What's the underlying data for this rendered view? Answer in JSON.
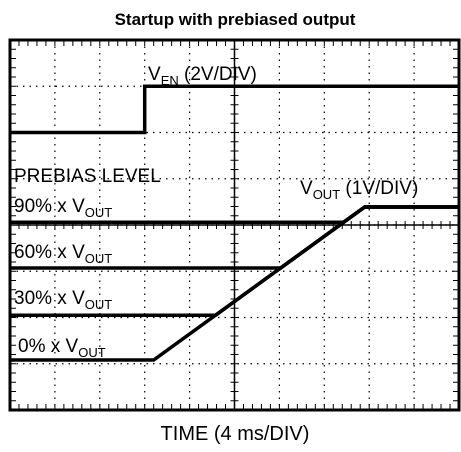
{
  "chart_data": {
    "type": "line",
    "title": "Startup with prebiased output",
    "xlabel": "TIME (4 ms/DIV)",
    "annotations": {
      "en": {
        "main": "V",
        "sub": "EN",
        "rest": " (2V/DIV)"
      },
      "vout": {
        "main": "V",
        "sub": "OUT",
        "rest": " (1V/DIV)"
      },
      "prebias": "PREBIAS LEVEL",
      "p90": {
        "main": "90% x V",
        "sub": "OUT"
      },
      "p60": {
        "main": "60% x V",
        "sub": "OUT"
      },
      "p30": {
        "main": "30% x V",
        "sub": "OUT"
      },
      "p0": {
        "main": "0% x V",
        "sub": "OUT"
      }
    },
    "xlim": [
      0,
      10
    ],
    "ylim": [
      0,
      8
    ],
    "xticks": [
      0,
      1,
      2,
      3,
      4,
      5,
      6,
      7,
      8,
      9,
      10
    ],
    "yticks": [
      0,
      1,
      2,
      3,
      4,
      5,
      6,
      7,
      8
    ],
    "grid": true,
    "series": [
      {
        "color": "#000000",
        "x": [
          0,
          3,
          3,
          10
        ],
        "values": [
          6,
          6,
          7,
          7
        ]
      },
      {
        "color": "#000000",
        "x": [
          0,
          3.2,
          7.9,
          10
        ],
        "values": [
          1.08,
          1.08,
          4.39,
          4.39
        ]
      },
      {
        "color": "#000000",
        "x": [
          0,
          4.58,
          7.9,
          10
        ],
        "values": [
          2.05,
          2.05,
          4.39,
          4.39
        ]
      },
      {
        "color": "#000000",
        "x": [
          0,
          6.03,
          7.9,
          10
        ],
        "values": [
          3.07,
          3.07,
          4.39,
          4.39
        ]
      },
      {
        "color": "#000000",
        "x": [
          0,
          7.43,
          7.9,
          10
        ],
        "values": [
          4.06,
          4.06,
          4.39,
          4.39
        ]
      }
    ]
  }
}
